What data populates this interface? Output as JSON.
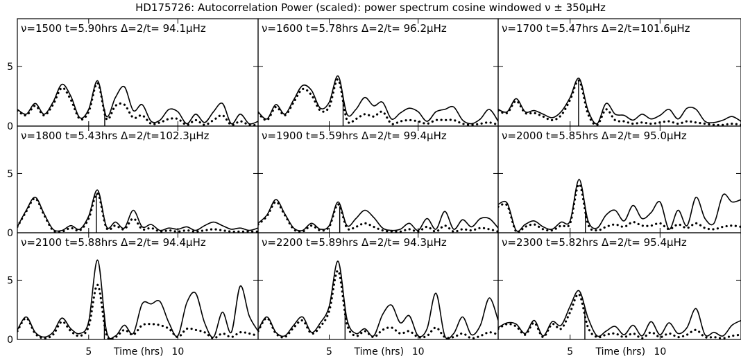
{
  "chart_data": {
    "type": "line",
    "title": "HD175726: Autocorrelation Power (scaled): power spectrum cosine windowed ν ± 350μHz",
    "xlabel": "Time (hrs)",
    "xlim": [
      1.0,
      14.5
    ],
    "ylim": [
      0,
      9
    ],
    "xticks": [
      5,
      10
    ],
    "xticklabels": [
      "5",
      "10"
    ],
    "yticks": [
      0,
      5
    ],
    "yticklabels": [
      "0",
      "5"
    ],
    "grid": false,
    "legend": "none",
    "x": [
      1.0,
      1.5,
      2.0,
      2.5,
      3.0,
      3.5,
      4.0,
      4.5,
      5.0,
      5.5,
      6.0,
      6.5,
      7.0,
      7.5,
      8.0,
      8.5,
      9.0,
      9.5,
      10.0,
      10.5,
      11.0,
      11.5,
      12.0,
      12.5,
      13.0,
      13.5,
      14.0,
      14.5
    ],
    "panels": [
      {
        "header": "ν=1500 t=5.90hrs Δ=2/t= 94.1μHz",
        "marker_t": 5.9,
        "series": [
          {
            "style": "solid",
            "values": [
              1.4,
              1.0,
              1.9,
              1.0,
              2.0,
              3.5,
              2.5,
              0.7,
              1.4,
              3.8,
              0.8,
              2.4,
              3.3,
              1.3,
              1.8,
              0.4,
              0.5,
              1.4,
              1.2,
              0.2,
              1.0,
              0.3,
              1.2,
              1.9,
              0.2,
              1.0,
              0.2,
              0.4
            ]
          },
          {
            "style": "dotted",
            "values": [
              1.3,
              0.9,
              1.7,
              0.9,
              1.8,
              3.2,
              2.2,
              0.6,
              1.2,
              3.6,
              0.6,
              1.7,
              1.8,
              0.7,
              0.9,
              0.2,
              0.3,
              0.6,
              0.6,
              0.1,
              0.5,
              0.1,
              0.5,
              0.9,
              0.1,
              0.4,
              0.1,
              0.1
            ]
          }
        ]
      },
      {
        "header": "ν=1600 t=5.78hrs Δ=2/t= 96.2μHz",
        "marker_t": 5.78,
        "series": [
          {
            "style": "solid",
            "values": [
              1.2,
              0.6,
              1.8,
              1.0,
              2.2,
              3.4,
              3.0,
              1.5,
              2.0,
              4.2,
              1.0,
              1.4,
              2.4,
              1.7,
              2.0,
              0.6,
              1.1,
              1.5,
              1.2,
              0.4,
              1.2,
              1.4,
              1.6,
              0.5,
              0.2,
              0.6,
              1.4,
              0.4
            ]
          },
          {
            "style": "dotted",
            "values": [
              1.1,
              0.5,
              1.6,
              0.9,
              2.0,
              3.1,
              2.6,
              1.3,
              1.6,
              3.9,
              0.5,
              0.6,
              1.0,
              0.8,
              1.2,
              0.2,
              0.4,
              0.5,
              0.4,
              0.2,
              0.5,
              0.5,
              0.5,
              0.2,
              0.1,
              0.2,
              0.3,
              0.1
            ]
          }
        ]
      },
      {
        "header": "ν=1700 t=5.47hrs Δ=2/t=101.6μHz",
        "marker_t": 5.47,
        "series": [
          {
            "style": "solid",
            "values": [
              1.4,
              1.2,
              2.3,
              1.2,
              1.3,
              1.0,
              0.7,
              1.2,
              2.4,
              4.0,
              1.3,
              0.2,
              1.9,
              1.0,
              0.9,
              0.5,
              1.0,
              0.6,
              0.9,
              1.4,
              0.6,
              1.5,
              1.4,
              0.4,
              0.3,
              0.5,
              0.8,
              0.4
            ]
          },
          {
            "style": "dotted",
            "values": [
              1.3,
              1.1,
              2.1,
              1.1,
              1.1,
              0.8,
              0.5,
              0.9,
              2.2,
              3.8,
              1.0,
              0.1,
              1.4,
              0.5,
              0.4,
              0.2,
              0.3,
              0.2,
              0.3,
              0.4,
              0.2,
              0.4,
              0.3,
              0.2,
              0.1,
              0.1,
              0.2,
              0.1
            ]
          }
        ]
      },
      {
        "header": "ν=1800 t=5.43hrs Δ=2/t=102.3μHz",
        "marker_t": 5.43,
        "series": [
          {
            "style": "solid",
            "values": [
              0.5,
              1.9,
              3.0,
              1.6,
              0.3,
              0.2,
              0.6,
              0.3,
              1.4,
              3.6,
              0.5,
              0.9,
              0.4,
              1.9,
              0.5,
              0.7,
              0.2,
              0.4,
              0.3,
              0.5,
              0.2,
              0.6,
              0.9,
              0.6,
              0.3,
              0.4,
              0.2,
              0.4
            ]
          },
          {
            "style": "dotted",
            "values": [
              0.5,
              1.8,
              2.9,
              1.5,
              0.2,
              0.1,
              0.4,
              0.2,
              1.2,
              3.3,
              0.4,
              0.6,
              0.3,
              1.2,
              0.3,
              0.4,
              0.1,
              0.2,
              0.1,
              0.2,
              0.1,
              0.2,
              0.3,
              0.2,
              0.1,
              0.1,
              0.1,
              0.1
            ]
          }
        ]
      },
      {
        "header": "ν=1900 t=5.59hrs Δ=2/t= 99.4μHz",
        "marker_t": 5.59,
        "series": [
          {
            "style": "solid",
            "values": [
              0.8,
              1.5,
              2.8,
              1.6,
              0.4,
              0.2,
              0.8,
              0.3,
              0.6,
              2.6,
              0.6,
              1.2,
              1.9,
              1.3,
              0.4,
              0.2,
              0.3,
              0.8,
              0.2,
              1.2,
              0.3,
              1.8,
              0.3,
              1.1,
              0.5,
              1.2,
              1.2,
              0.4
            ]
          },
          {
            "style": "dotted",
            "values": [
              0.7,
              1.4,
              2.6,
              1.5,
              0.3,
              0.1,
              0.6,
              0.2,
              0.5,
              2.4,
              0.4,
              0.5,
              0.8,
              0.5,
              0.2,
              0.1,
              0.1,
              0.3,
              0.1,
              0.5,
              0.1,
              0.6,
              0.1,
              0.3,
              0.2,
              0.4,
              0.3,
              0.1
            ]
          }
        ]
      },
      {
        "header": "ν=2000 t=5.85hrs Δ=2/t= 95.0μHz",
        "marker_t": 5.85,
        "series": [
          {
            "style": "solid",
            "values": [
              2.4,
              2.5,
              0.2,
              0.7,
              1.0,
              0.5,
              0.3,
              0.9,
              1.0,
              4.5,
              1.0,
              0.4,
              1.5,
              1.9,
              1.0,
              2.3,
              1.2,
              1.7,
              2.6,
              0.3,
              1.9,
              0.6,
              3.0,
              1.2,
              0.8,
              3.2,
              2.6,
              2.8
            ]
          },
          {
            "style": "dotted",
            "values": [
              2.2,
              2.3,
              0.1,
              0.5,
              0.7,
              0.3,
              0.2,
              0.6,
              0.8,
              4.1,
              0.7,
              0.2,
              0.5,
              0.7,
              0.5,
              0.9,
              0.6,
              0.6,
              0.8,
              0.3,
              0.7,
              0.4,
              0.8,
              0.4,
              0.3,
              0.5,
              0.6,
              0.5
            ]
          }
        ]
      },
      {
        "header": "ν=2100 t=5.88hrs Δ=2/t= 94.4μHz",
        "marker_t": 5.88,
        "series": [
          {
            "style": "solid",
            "values": [
              0.8,
              1.9,
              0.6,
              0.2,
              0.6,
              1.8,
              0.9,
              0.5,
              1.5,
              6.7,
              0.7,
              0.3,
              1.2,
              0.5,
              3.0,
              3.0,
              3.2,
              1.4,
              0.3,
              3.1,
              3.9,
              1.4,
              0.2,
              2.3,
              0.6,
              4.5,
              2.0,
              0.7
            ]
          },
          {
            "style": "dotted",
            "values": [
              0.7,
              1.8,
              0.5,
              0.1,
              0.4,
              1.5,
              0.7,
              0.3,
              1.1,
              4.6,
              0.4,
              0.2,
              0.8,
              0.4,
              1.2,
              1.3,
              1.2,
              0.9,
              0.2,
              0.9,
              0.8,
              0.6,
              0.1,
              0.5,
              0.2,
              0.6,
              0.5,
              0.3
            ]
          }
        ]
      },
      {
        "header": "ν=2200 t=5.89hrs Δ=2/t= 94.3μHz",
        "marker_t": 5.89,
        "series": [
          {
            "style": "solid",
            "values": [
              0.8,
              1.9,
              0.6,
              0.3,
              1.2,
              1.9,
              0.6,
              1.4,
              2.8,
              6.6,
              1.7,
              0.5,
              0.9,
              0.3,
              2.1,
              2.9,
              1.4,
              2.0,
              0.3,
              0.9,
              3.9,
              0.3,
              0.5,
              1.9,
              0.4,
              1.2,
              3.5,
              1.6
            ]
          },
          {
            "style": "dotted",
            "values": [
              0.7,
              1.8,
              0.5,
              0.2,
              1.0,
              1.6,
              0.5,
              1.1,
              2.4,
              5.8,
              1.3,
              0.3,
              0.7,
              0.2,
              0.8,
              1.0,
              0.5,
              0.7,
              0.2,
              0.3,
              1.0,
              0.2,
              0.2,
              0.5,
              0.1,
              0.3,
              0.6,
              0.4
            ]
          }
        ]
      },
      {
        "header": "ν=2300 t=5.82hrs Δ=2/t= 95.4μHz",
        "marker_t": 5.82,
        "series": [
          {
            "style": "solid",
            "values": [
              1.0,
              1.4,
              1.3,
              0.5,
              1.6,
              0.3,
              1.5,
              1.2,
              2.8,
              4.1,
              1.8,
              0.3,
              0.7,
              1.1,
              0.4,
              1.2,
              0.3,
              1.5,
              0.4,
              1.4,
              0.5,
              1.0,
              2.6,
              0.4,
              0.6,
              0.3,
              1.2,
              1.6
            ]
          },
          {
            "style": "dotted",
            "values": [
              0.9,
              1.3,
              1.1,
              0.4,
              1.4,
              0.2,
              1.3,
              0.9,
              2.3,
              3.8,
              1.0,
              0.2,
              0.4,
              0.5,
              0.2,
              0.5,
              0.1,
              0.6,
              0.2,
              0.5,
              0.2,
              0.4,
              0.8,
              0.2,
              0.2,
              0.1,
              0.3,
              0.4
            ]
          }
        ]
      }
    ]
  }
}
